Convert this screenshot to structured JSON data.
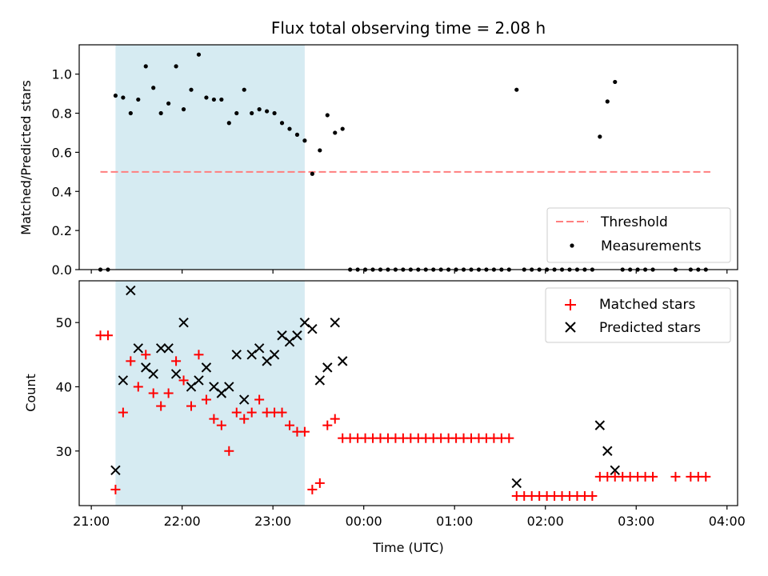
{
  "chart_data": [
    {
      "type": "scatter",
      "title": "Flux total observing time = 2.08 h",
      "ylabel": "Matched/Predicted stars",
      "xlabel": "",
      "ylim": [
        0,
        1.15
      ],
      "xlim": [
        "20:52",
        "04:07"
      ],
      "yticks": [
        "0.0",
        "0.2",
        "0.4",
        "0.6",
        "0.8",
        "1.0"
      ],
      "shaded_interval": [
        "21:16",
        "23:21"
      ],
      "legend_position": "bottom-right",
      "legend": [
        "Threshold",
        "Measurements"
      ],
      "threshold": {
        "name": "Threshold",
        "value": 0.5,
        "x_range": [
          "21:06",
          "03:49"
        ],
        "color": "#ff7f7f"
      },
      "measurements": {
        "name": "Measurements",
        "x": [
          "21:06",
          "21:11",
          "21:16",
          "21:21",
          "21:26",
          "21:31",
          "21:36",
          "21:41",
          "21:46",
          "21:51",
          "21:56",
          "22:01",
          "22:06",
          "22:11",
          "22:16",
          "22:21",
          "22:26",
          "22:31",
          "22:36",
          "22:41",
          "22:46",
          "22:51",
          "22:56",
          "23:01",
          "23:06",
          "23:11",
          "23:16",
          "23:21",
          "23:26",
          "23:31",
          "23:36",
          "23:41",
          "23:46",
          "23:51",
          "23:56",
          "00:01",
          "00:06",
          "00:11",
          "00:16",
          "00:21",
          "00:26",
          "00:31",
          "00:36",
          "00:41",
          "00:46",
          "00:51",
          "00:56",
          "01:01",
          "01:06",
          "01:11",
          "01:16",
          "01:21",
          "01:26",
          "01:31",
          "01:36",
          "01:41",
          "01:46",
          "01:51",
          "01:56",
          "02:01",
          "02:06",
          "02:11",
          "02:16",
          "02:21",
          "02:26",
          "02:31",
          "02:36",
          "02:41",
          "02:46",
          "02:51",
          "02:56",
          "03:01",
          "03:06",
          "03:11",
          "03:26",
          "03:36",
          "03:41",
          "03:46"
        ],
        "y": [
          0,
          0,
          0.89,
          0.88,
          0.8,
          0.87,
          1.04,
          0.93,
          0.8,
          0.85,
          1.04,
          0.82,
          0.92,
          1.1,
          0.88,
          0.87,
          0.87,
          0.75,
          0.8,
          0.92,
          0.8,
          0.82,
          0.81,
          0.8,
          0.75,
          0.72,
          0.69,
          0.66,
          0.49,
          0.61,
          0.79,
          0.7,
          0.72,
          0,
          0,
          0,
          0,
          0,
          0,
          0,
          0,
          0,
          0,
          0,
          0,
          0,
          0,
          0,
          0,
          0,
          0,
          0,
          0,
          0,
          0,
          0.92,
          0,
          0,
          0,
          0,
          0,
          0,
          0,
          0,
          0,
          0,
          0.68,
          0.86,
          0.96,
          0,
          0,
          0,
          0,
          0,
          0,
          0,
          0,
          0
        ]
      }
    },
    {
      "type": "scatter",
      "title": "",
      "ylabel": "Count",
      "xlabel": "Time (UTC)",
      "ylim": [
        21.5,
        56.5
      ],
      "xlim": [
        "20:52",
        "04:07"
      ],
      "yticks": [
        "30",
        "40",
        "50"
      ],
      "xticks": [
        "21:00",
        "22:00",
        "23:00",
        "00:00",
        "01:00",
        "02:00",
        "03:00",
        "04:00"
      ],
      "shaded_interval": [
        "21:16",
        "23:21"
      ],
      "legend_position": "top-right",
      "legend": [
        "Matched stars",
        "Predicted stars"
      ],
      "matched": {
        "name": "Matched stars",
        "color": "#ff0000",
        "x": [
          "21:06",
          "21:11",
          "21:16",
          "21:21",
          "21:26",
          "21:31",
          "21:36",
          "21:41",
          "21:46",
          "21:51",
          "21:56",
          "22:01",
          "22:06",
          "22:11",
          "22:16",
          "22:21",
          "22:26",
          "22:31",
          "22:36",
          "22:41",
          "22:46",
          "22:51",
          "22:56",
          "23:01",
          "23:06",
          "23:11",
          "23:16",
          "23:21",
          "23:26",
          "23:31",
          "23:36",
          "23:41",
          "23:46",
          "23:51",
          "23:56",
          "00:01",
          "00:06",
          "00:11",
          "00:16",
          "00:21",
          "00:26",
          "00:31",
          "00:36",
          "00:41",
          "00:46",
          "00:51",
          "00:56",
          "01:01",
          "01:06",
          "01:11",
          "01:16",
          "01:21",
          "01:26",
          "01:31",
          "01:36",
          "01:41",
          "01:46",
          "01:51",
          "01:56",
          "02:01",
          "02:06",
          "02:11",
          "02:16",
          "02:21",
          "02:26",
          "02:31",
          "02:36",
          "02:41",
          "02:46",
          "02:51",
          "02:56",
          "03:01",
          "03:06",
          "03:11",
          "03:26",
          "03:36",
          "03:41",
          "03:46"
        ],
        "y": [
          48,
          48,
          24,
          36,
          44,
          40,
          45,
          39,
          37,
          39,
          44,
          41,
          37,
          45,
          38,
          35,
          34,
          30,
          36,
          35,
          36,
          38,
          36,
          36,
          36,
          34,
          33,
          33,
          24,
          25,
          34,
          35,
          32,
          32,
          32,
          32,
          32,
          32,
          32,
          32,
          32,
          32,
          32,
          32,
          32,
          32,
          32,
          32,
          32,
          32,
          32,
          32,
          32,
          32,
          32,
          23,
          23,
          23,
          23,
          23,
          23,
          23,
          23,
          23,
          23,
          23,
          26,
          26,
          26,
          26,
          26,
          26,
          26,
          26,
          26,
          26,
          26,
          26
        ]
      },
      "predicted": {
        "name": "Predicted stars",
        "color": "#000000",
        "x": [
          "21:16",
          "21:21",
          "21:26",
          "21:31",
          "21:36",
          "21:41",
          "21:46",
          "21:51",
          "21:56",
          "22:01",
          "22:06",
          "22:11",
          "22:16",
          "22:21",
          "22:26",
          "22:31",
          "22:36",
          "22:41",
          "22:46",
          "22:51",
          "22:56",
          "23:01",
          "23:06",
          "23:11",
          "23:16",
          "23:21",
          "23:26",
          "23:31",
          "23:36",
          "23:41",
          "23:46",
          "01:41",
          "02:36",
          "02:41",
          "02:46"
        ],
        "y": [
          27,
          41,
          55,
          46,
          43,
          42,
          46,
          46,
          42,
          50,
          40,
          41,
          43,
          40,
          39,
          40,
          45,
          38,
          45,
          46,
          44,
          45,
          48,
          47,
          48,
          50,
          49,
          41,
          43,
          50,
          44,
          25,
          34,
          30,
          27
        ]
      }
    }
  ]
}
